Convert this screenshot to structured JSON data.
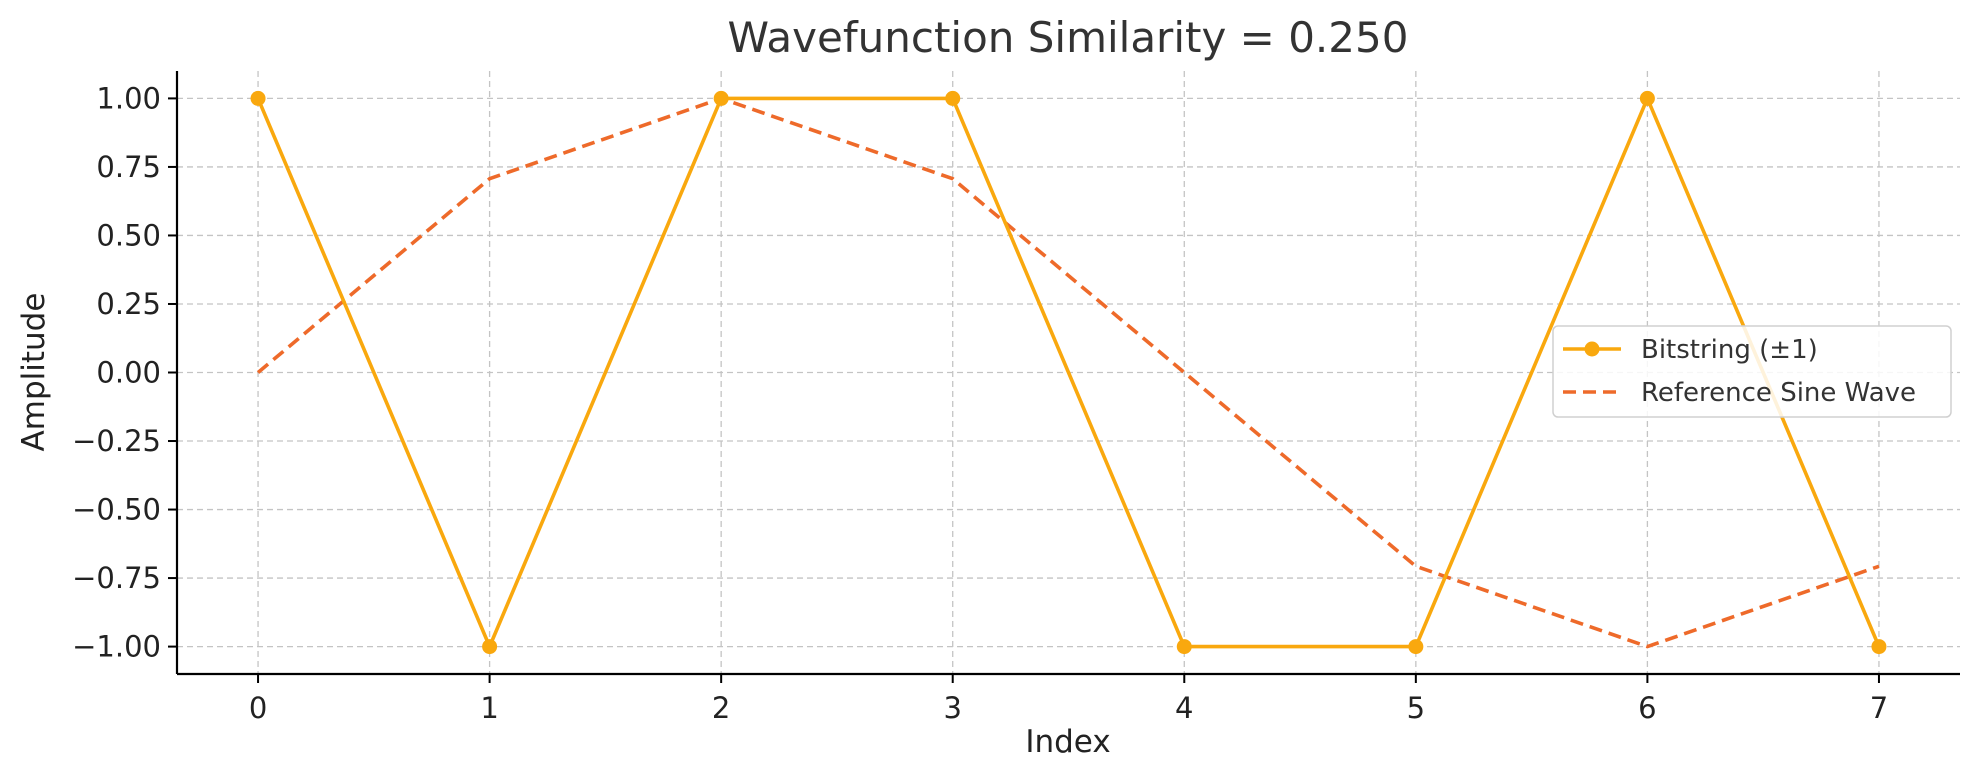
{
  "chart_data": {
    "type": "line",
    "title": "Wavefunction Similarity = 0.250",
    "xlabel": "Index",
    "ylabel": "Amplitude",
    "xlim": [
      -0.35,
      7.35
    ],
    "ylim": [
      -1.1,
      1.1
    ],
    "xticks": [
      0,
      1,
      2,
      3,
      4,
      5,
      6,
      7
    ],
    "xtick_labels": [
      "0",
      "1",
      "2",
      "3",
      "4",
      "5",
      "6",
      "7"
    ],
    "yticks": [
      1.0,
      0.75,
      0.5,
      0.25,
      0.0,
      -0.25,
      -0.5,
      -0.75,
      -1.0
    ],
    "ytick_labels": [
      "1.00",
      "0.75",
      "0.50",
      "0.25",
      "0.00",
      "−0.25",
      "−0.50",
      "−0.75",
      "−1.00"
    ],
    "grid": true,
    "legend": {
      "placement": "center-right"
    },
    "series": [
      {
        "name": "Bitstring (±1)",
        "color": "#F9A80E",
        "style": "solid",
        "marker": "circle",
        "x": [
          0,
          1,
          2,
          3,
          4,
          5,
          6,
          7
        ],
        "y": [
          1,
          -1,
          1,
          1,
          -1,
          -1,
          1,
          -1
        ]
      },
      {
        "name": "Reference Sine Wave",
        "color": "#EE6A2A",
        "style": "dashed",
        "marker": "none",
        "x": [
          0,
          1,
          2,
          3,
          4,
          5,
          6,
          7
        ],
        "y": [
          0.0,
          0.707,
          1.0,
          0.707,
          0.0,
          -0.707,
          -1.0,
          -0.707
        ]
      }
    ]
  }
}
